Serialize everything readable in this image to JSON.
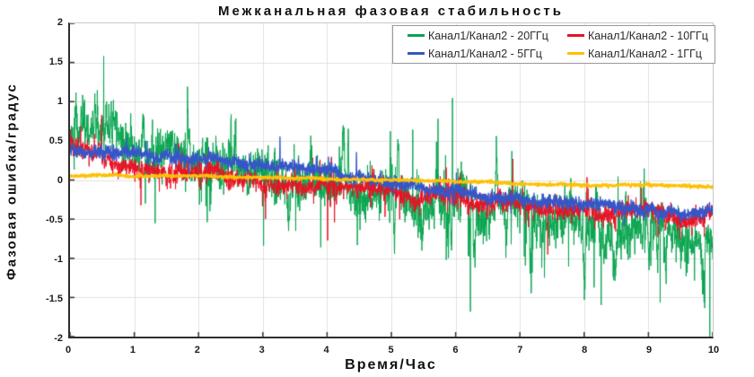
{
  "chart_data": {
    "type": "line",
    "title": "Межканальная фазовая стабильность",
    "xlabel": "Время/Час",
    "ylabel": "Фазовая ошибка/градус",
    "xlim": [
      0,
      10
    ],
    "ylim": [
      -2,
      2
    ],
    "x_ticks": [
      "0",
      "1",
      "2",
      "3",
      "4",
      "5",
      "6",
      "7",
      "8",
      "9",
      "10"
    ],
    "y_ticks": [
      "2",
      "1.5",
      "1",
      "0.5",
      "0",
      "-0.5",
      "-1",
      "-1.5",
      "-2"
    ],
    "grid": true,
    "grid_step_x": 1,
    "grid_step_y": 0.5,
    "legend_position": "top-right",
    "series": [
      {
        "name": "Канал1/Канал2 - 20ГГц",
        "color": "#0aa550",
        "seed": 11,
        "points": 2900,
        "line_width": 1,
        "trend_keypoints": [
          [
            0,
            0.58
          ],
          [
            0.5,
            0.5
          ],
          [
            1,
            0.42
          ],
          [
            1.5,
            0.36
          ],
          [
            2,
            0.31
          ],
          [
            2.5,
            0.26
          ],
          [
            3,
            0.18
          ],
          [
            3.5,
            0.08
          ],
          [
            4,
            0.02
          ],
          [
            4.5,
            -0.08
          ],
          [
            5,
            -0.14
          ],
          [
            5.5,
            -0.2
          ],
          [
            6,
            -0.25
          ],
          [
            6.5,
            -0.32
          ],
          [
            7,
            -0.38
          ],
          [
            7.5,
            -0.46
          ],
          [
            8,
            -0.52
          ],
          [
            8.5,
            -0.58
          ],
          [
            9,
            -0.62
          ],
          [
            9.5,
            -0.68
          ],
          [
            10,
            -0.72
          ]
        ],
        "noise_model": {
          "sigma": 0.11,
          "tail": 0.03,
          "wander": 0.016,
          "burst_prob": 0.02,
          "burst_len": [
            4,
            26
          ],
          "burst_amp": [
            0.2,
            0.8
          ],
          "up_bias_start": 0.85,
          "up_bias_end": 0.12
        }
      },
      {
        "name": "Канал1/Канал2 - 10ГГц",
        "color": "#e81123",
        "seed": 22,
        "points": 2900,
        "line_width": 1,
        "trend_keypoints": [
          [
            0,
            0.5
          ],
          [
            0.2,
            0.42
          ],
          [
            0.5,
            0.3
          ],
          [
            0.8,
            0.22
          ],
          [
            1.2,
            0.15
          ],
          [
            1.6,
            0.1
          ],
          [
            2,
            0.08
          ],
          [
            2.5,
            0.03
          ],
          [
            3,
            -0.02
          ],
          [
            3.5,
            -0.06
          ],
          [
            4,
            -0.09
          ],
          [
            4.5,
            -0.11
          ],
          [
            5,
            -0.13
          ],
          [
            5.5,
            -0.18
          ],
          [
            6,
            -0.21
          ],
          [
            6.5,
            -0.27
          ],
          [
            7,
            -0.31
          ],
          [
            7.5,
            -0.35
          ],
          [
            8,
            -0.38
          ],
          [
            8.5,
            -0.41
          ],
          [
            9,
            -0.43
          ],
          [
            9.5,
            -0.44
          ],
          [
            10,
            -0.45
          ]
        ],
        "noise_model": {
          "sigma": 0.05,
          "tail": 0.012,
          "wander": 0.008,
          "burst_prob": 0.012,
          "burst_len": [
            3,
            14
          ],
          "burst_amp": [
            0.06,
            0.2
          ],
          "up_bias_start": 0.5,
          "up_bias_end": 0.5
        }
      },
      {
        "name": "Канал1/Канал2 - 5ГГц",
        "color": "#3656c8",
        "seed": 33,
        "points": 2900,
        "line_width": 1.4,
        "trend_keypoints": [
          [
            0,
            0.38
          ],
          [
            0.5,
            0.36
          ],
          [
            1,
            0.33
          ],
          [
            1.5,
            0.31
          ],
          [
            2,
            0.29
          ],
          [
            2.5,
            0.25
          ],
          [
            3,
            0.22
          ],
          [
            3.5,
            0.16
          ],
          [
            4,
            0.1
          ],
          [
            4.5,
            0.04
          ],
          [
            5,
            -0.02
          ],
          [
            5.5,
            -0.09
          ],
          [
            6,
            -0.13
          ],
          [
            6.5,
            -0.19
          ],
          [
            7,
            -0.25
          ],
          [
            7.5,
            -0.28
          ],
          [
            8,
            -0.32
          ],
          [
            8.5,
            -0.35
          ],
          [
            9,
            -0.37
          ],
          [
            9.5,
            -0.39
          ],
          [
            10,
            -0.4
          ]
        ],
        "noise_model": {
          "sigma": 0.035,
          "tail": 0.006,
          "wander": 0.005,
          "burst_prob": 0.006,
          "burst_len": [
            3,
            10
          ],
          "burst_amp": [
            0.04,
            0.1
          ],
          "up_bias_start": 0.5,
          "up_bias_end": 0.5
        }
      },
      {
        "name": "Канал1/Канал2 - 1ГГц",
        "color": "#fdc006",
        "seed": 44,
        "points": 2900,
        "line_width": 2,
        "trend_keypoints": [
          [
            0,
            0.05
          ],
          [
            1,
            0.045
          ],
          [
            2,
            0.04
          ],
          [
            3,
            0.035
          ],
          [
            4,
            0.02
          ],
          [
            5,
            0.0
          ],
          [
            6,
            -0.02
          ],
          [
            7,
            -0.045
          ],
          [
            8,
            -0.06
          ],
          [
            9,
            -0.07
          ],
          [
            10,
            -0.08
          ]
        ],
        "noise_model": {
          "sigma": 0.008,
          "tail": 0.001,
          "wander": 0.0012,
          "burst_prob": 0,
          "burst_len": [
            0,
            0
          ],
          "burst_amp": [
            0,
            0
          ],
          "up_bias_start": 0.5,
          "up_bias_end": 0.5
        }
      }
    ]
  },
  "colors": {
    "axis": "#2e2e2e",
    "grid": "#e0e0e0",
    "border": "#c8c8c8",
    "background": "#ffffff",
    "legend_border": "#999999",
    "text": "#1a1a1a"
  }
}
